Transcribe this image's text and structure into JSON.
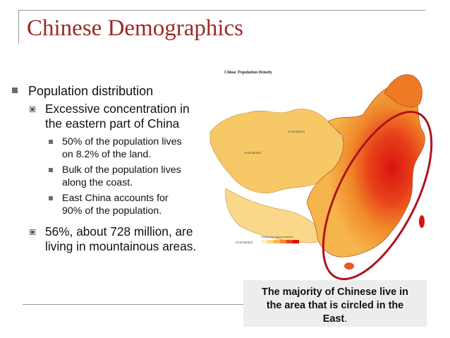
{
  "slide": {
    "title": "Chinese Demographics"
  },
  "bullets": {
    "level1": "Population distribution",
    "sub1_line1": "Excessive concentration in",
    "sub1_line2": "the eastern part of China",
    "facts": [
      {
        "line1": "50% of the population lives",
        "line2": "on 8.2% of the land."
      },
      {
        "line1": "Bulk of the population lives",
        "line2": "along the coast."
      },
      {
        "line1": "East China accounts for",
        "line2": "90% of the population."
      }
    ],
    "sub2_line1": "56%, about 728 million, are",
    "sub2_line2": "living in mountainous areas."
  },
  "map": {
    "title": "China: Population Density",
    "label_uninhabited": "Uninhabited",
    "legend_caption": "Persons per square kilometre"
  },
  "caption": {
    "line1": "The majority of Chinese live in",
    "line2": "the area that is circled in the",
    "line3": "East",
    "line3_end": "."
  },
  "colors": {
    "title": "#9a2a24",
    "circle": "#b0121a",
    "caption_bg": "#ededed"
  }
}
